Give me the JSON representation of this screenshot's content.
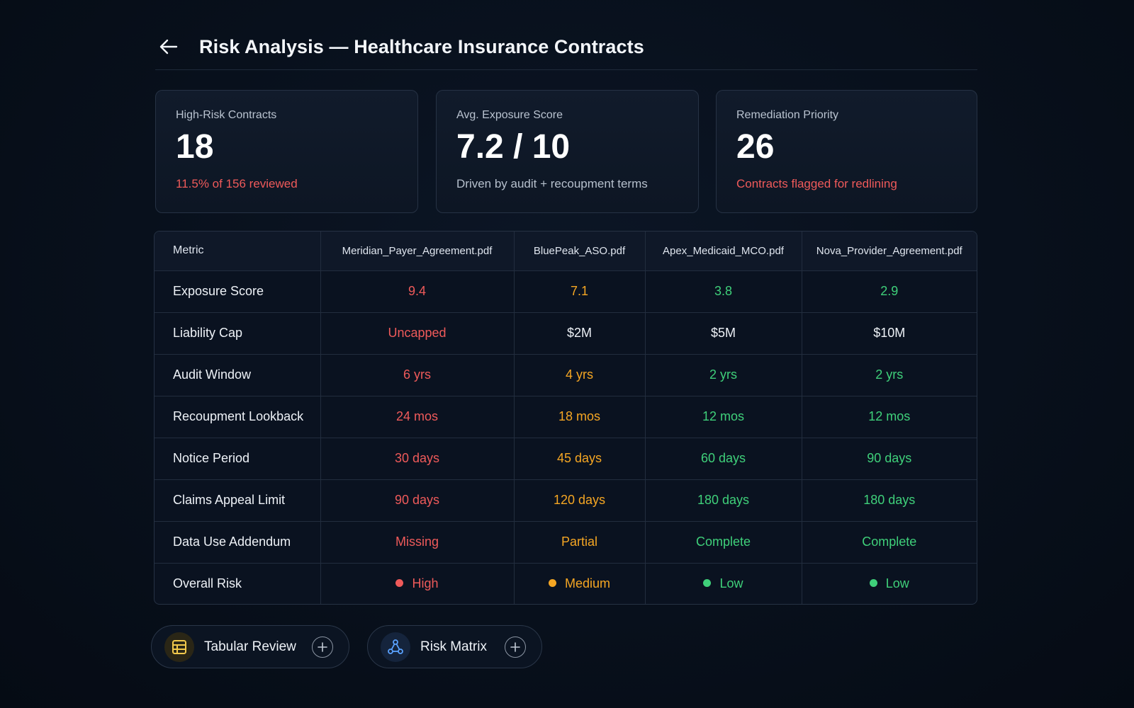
{
  "header": {
    "title": "Risk Analysis — Healthcare Insurance Contracts"
  },
  "kpis": [
    {
      "label": "High-Risk Contracts",
      "value": "18",
      "sub": "11.5% of 156 reviewed",
      "sub_color": "#ef5a5a"
    },
    {
      "label": "Avg. Exposure Score",
      "value": "7.2 / 10",
      "sub": "Driven by audit + recoupment terms",
      "sub_color": "#b6c0cd"
    },
    {
      "label": "Remediation Priority",
      "value": "26",
      "sub": "Contracts flagged for redlining",
      "sub_color": "#ef5a5a"
    }
  ],
  "table": {
    "headers": [
      "Metric",
      "Meridian_Payer_Agreement.pdf",
      "BluePeak_ASO.pdf",
      "Apex_Medicaid_MCO.pdf",
      "Nova_Provider_Agreement.pdf"
    ],
    "rows": [
      {
        "metric": "Exposure Score",
        "cells": [
          {
            "text": "9.4",
            "level": "red"
          },
          {
            "text": "7.1",
            "level": "orange"
          },
          {
            "text": "3.8",
            "level": "green"
          },
          {
            "text": "2.9",
            "level": "green"
          }
        ]
      },
      {
        "metric": "Liability Cap",
        "cells": [
          {
            "text": "Uncapped",
            "level": "red"
          },
          {
            "text": "$2M",
            "level": "white"
          },
          {
            "text": "$5M",
            "level": "white"
          },
          {
            "text": "$10M",
            "level": "white"
          }
        ]
      },
      {
        "metric": "Audit Window",
        "cells": [
          {
            "text": "6 yrs",
            "level": "red"
          },
          {
            "text": "4 yrs",
            "level": "orange"
          },
          {
            "text": "2 yrs",
            "level": "green"
          },
          {
            "text": "2 yrs",
            "level": "green"
          }
        ]
      },
      {
        "metric": "Recoupment Lookback",
        "cells": [
          {
            "text": "24 mos",
            "level": "red"
          },
          {
            "text": "18 mos",
            "level": "orange"
          },
          {
            "text": "12 mos",
            "level": "green"
          },
          {
            "text": "12 mos",
            "level": "green"
          }
        ]
      },
      {
        "metric": "Notice Period",
        "cells": [
          {
            "text": "30 days",
            "level": "red"
          },
          {
            "text": "45 days",
            "level": "orange"
          },
          {
            "text": "60 days",
            "level": "green"
          },
          {
            "text": "90 days",
            "level": "green"
          }
        ]
      },
      {
        "metric": "Claims Appeal Limit",
        "cells": [
          {
            "text": "90 days",
            "level": "red"
          },
          {
            "text": "120 days",
            "level": "orange"
          },
          {
            "text": "180 days",
            "level": "green"
          },
          {
            "text": "180 days",
            "level": "green"
          }
        ]
      },
      {
        "metric": "Data Use Addendum",
        "cells": [
          {
            "text": "Missing",
            "level": "red"
          },
          {
            "text": "Partial",
            "level": "orange"
          },
          {
            "text": "Complete",
            "level": "green"
          },
          {
            "text": "Complete",
            "level": "green"
          }
        ]
      },
      {
        "metric": "Overall Risk",
        "dot": true,
        "cells": [
          {
            "text": "High",
            "level": "red"
          },
          {
            "text": "Medium",
            "level": "orange"
          },
          {
            "text": "Low",
            "level": "green"
          },
          {
            "text": "Low",
            "level": "green"
          }
        ]
      }
    ]
  },
  "colors": {
    "red": "#ef5a5a",
    "orange": "#f5a623",
    "green": "#3fd07a",
    "white": "#eef2f7"
  },
  "pills": {
    "tabular": {
      "label": "Tabular Review",
      "icon": "table-icon"
    },
    "matrix": {
      "label": "Risk Matrix",
      "icon": "network-icon"
    }
  }
}
